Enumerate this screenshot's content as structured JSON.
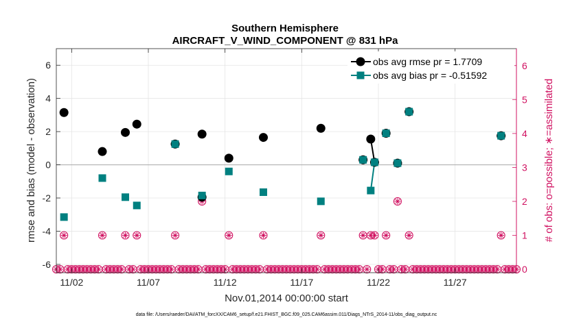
{
  "chart_data": {
    "type": "line",
    "title": "Southern Hemisphere",
    "subtitle": "AIRCRAFT_V_WIND_COMPONENT @ 831 hPa",
    "xlabel": "Nov.01,2014 00:00:00 start",
    "ylabel": "rmse and bias (model - observation)",
    "y2label": "# of obs: o=possible; ∗=assimilated",
    "footnote": "data file: /Users/raeder/DAI/ATM_forcXX/CAM6_setup/f.e21.FHIST_BGC.f09_025.CAM6assim.011/Diags_NTrS_2014-11/obs_diag_output.nc",
    "x_tick_labels": [
      "11/02",
      "11/07",
      "11/12",
      "11/17",
      "11/22",
      "11/27"
    ],
    "x_ticks": [
      "2014-11-02",
      "2014-11-07",
      "2014-11-12",
      "2014-11-17",
      "2014-11-22",
      "2014-11-27"
    ],
    "xlim": [
      "2014-11-01 00:00",
      "2014-12-01 00:00"
    ],
    "ylim": [
      -6.5,
      7
    ],
    "y_ticks": [
      -6,
      -4,
      -2,
      0,
      2,
      4,
      6
    ],
    "y2lim": [
      -0.1,
      6.5
    ],
    "y2_ticks": [
      0,
      1,
      2,
      3,
      4,
      5,
      6
    ],
    "zero_line": true,
    "grid": true,
    "colors": {
      "rmse": "#000000",
      "bias": "#008080",
      "obs_count": "#d01060",
      "zero_line": "#b0b0b0"
    },
    "legend": {
      "location": "top-right"
    },
    "series": [
      {
        "name": "obs avg rmse pr = 1.7709",
        "marker": "circle",
        "points": [
          [
            "2014-11-01 12:00",
            3.15
          ],
          [
            "2014-11-04 00:00",
            0.8
          ],
          [
            "2014-11-05 12:00",
            1.95
          ],
          [
            "2014-11-06 06:00",
            2.45
          ],
          [
            "2014-11-08 18:00",
            1.25
          ],
          [
            "2014-11-10 12:00",
            -1.95
          ],
          [
            "2014-11-10 12:00",
            1.85
          ],
          [
            "2014-11-12 06:00",
            0.4
          ],
          [
            "2014-11-14 12:00",
            1.65
          ],
          [
            "2014-11-18 06:00",
            2.2
          ],
          [
            "2014-11-21 00:00",
            0.3
          ],
          [
            "2014-11-21 12:00",
            1.55
          ],
          [
            "2014-11-21 18:00",
            0.15
          ],
          [
            "2014-11-22 12:00",
            1.9
          ],
          [
            "2014-11-23 06:00",
            0.1
          ],
          [
            "2014-11-24 00:00",
            3.2
          ],
          [
            "2014-11-30 00:00",
            1.75
          ]
        ],
        "connected": [
          [
            "2014-11-21 12:00",
            1.55
          ],
          [
            "2014-11-21 18:00",
            0.15
          ]
        ]
      },
      {
        "name": "obs avg bias pr = -0.51592",
        "marker": "square",
        "points": [
          [
            "2014-11-01 12:00",
            -3.15
          ],
          [
            "2014-11-04 00:00",
            -0.8
          ],
          [
            "2014-11-05 12:00",
            -1.95
          ],
          [
            "2014-11-06 06:00",
            -2.45
          ],
          [
            "2014-11-08 18:00",
            1.25
          ],
          [
            "2014-11-10 12:00",
            -1.85
          ],
          [
            "2014-11-12 06:00",
            -0.4
          ],
          [
            "2014-11-14 12:00",
            -1.65
          ],
          [
            "2014-11-18 06:00",
            -2.2
          ],
          [
            "2014-11-21 00:00",
            0.3
          ],
          [
            "2014-11-21 12:00",
            -1.55
          ],
          [
            "2014-11-21 18:00",
            0.15
          ],
          [
            "2014-11-22 12:00",
            1.9
          ],
          [
            "2014-11-23 06:00",
            0.1
          ],
          [
            "2014-11-24 00:00",
            3.2
          ],
          [
            "2014-11-30 00:00",
            1.75
          ]
        ],
        "connected": [
          [
            "2014-11-21 12:00",
            -1.55
          ],
          [
            "2014-11-21 18:00",
            0.15
          ]
        ]
      },
      {
        "axis": "right",
        "marker": "circle-asterisk",
        "points_nonzero": [
          [
            "2014-11-01 12:00",
            1
          ],
          [
            "2014-11-04 00:00",
            1
          ],
          [
            "2014-11-05 12:00",
            1
          ],
          [
            "2014-11-06 06:00",
            1
          ],
          [
            "2014-11-08 18:00",
            1
          ],
          [
            "2014-11-10 12:00",
            2
          ],
          [
            "2014-11-12 06:00",
            1
          ],
          [
            "2014-11-14 12:00",
            1
          ],
          [
            "2014-11-18 06:00",
            1
          ],
          [
            "2014-11-21 00:00",
            1
          ],
          [
            "2014-11-21 12:00",
            1
          ],
          [
            "2014-11-21 18:00",
            1
          ],
          [
            "2014-11-22 12:00",
            1
          ],
          [
            "2014-11-23 06:00",
            2
          ],
          [
            "2014-11-24 00:00",
            1
          ],
          [
            "2014-11-30 00:00",
            1
          ]
        ],
        "zeros_every_6h_start": "2014-11-01 00:00",
        "zeros_every_6h_end": "2014-12-01 00:00"
      }
    ]
  }
}
